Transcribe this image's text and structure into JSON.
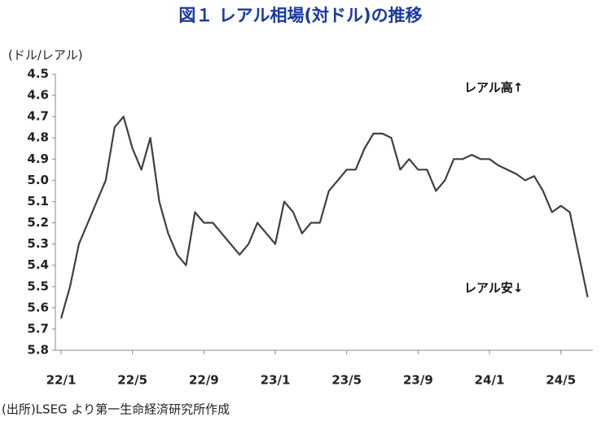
{
  "chart_data": {
    "type": "line",
    "title": "図１ レアル相場(対ドル)の推移",
    "y_label": "(ドル/レアル)",
    "annotations": [
      "レアル高↑",
      "レアル安↓"
    ],
    "source": "(出所)LSEG より第一生命経済研究所作成",
    "inverted_y": true,
    "categories": [
      "22/1",
      null,
      null,
      null,
      null,
      null,
      null,
      null,
      "22/5",
      null,
      null,
      null,
      null,
      null,
      null,
      null,
      "22/9",
      null,
      null,
      null,
      null,
      null,
      null,
      null,
      "23/1",
      null,
      null,
      null,
      null,
      null,
      null,
      null,
      "23/5",
      null,
      null,
      null,
      null,
      null,
      null,
      null,
      "23/9",
      null,
      null,
      null,
      null,
      null,
      null,
      null,
      "24/1",
      null,
      null,
      null,
      null,
      null,
      null,
      null,
      "24/5",
      null,
      null,
      null
    ],
    "series": [
      {
        "name": "ドル/レアル",
        "color": "#404040",
        "values": [
          5.65,
          5.5,
          5.3,
          5.2,
          5.1,
          5.0,
          4.75,
          4.7,
          4.85,
          4.95,
          4.8,
          5.1,
          5.25,
          5.35,
          5.4,
          5.15,
          5.2,
          5.2,
          5.25,
          5.3,
          5.35,
          5.3,
          5.2,
          5.25,
          5.3,
          5.1,
          5.15,
          5.25,
          5.2,
          5.2,
          5.05,
          5.0,
          4.95,
          4.95,
          4.85,
          4.78,
          4.78,
          4.8,
          4.95,
          4.9,
          4.95,
          4.95,
          5.05,
          5.0,
          4.9,
          4.9,
          4.88,
          4.9,
          4.9,
          4.93,
          4.95,
          4.97,
          5.0,
          4.98,
          5.05,
          5.15,
          5.12,
          5.15,
          5.35,
          5.55
        ]
      }
    ],
    "ylim": [
      4.5,
      5.8
    ],
    "yticks": [
      4.5,
      4.6,
      4.7,
      4.8,
      4.9,
      {
        "value": 5,
        "label": "5.0"
      },
      5.1,
      5.2,
      5.3,
      5.4,
      5.5,
      5.6,
      5.7,
      5.8
    ]
  }
}
